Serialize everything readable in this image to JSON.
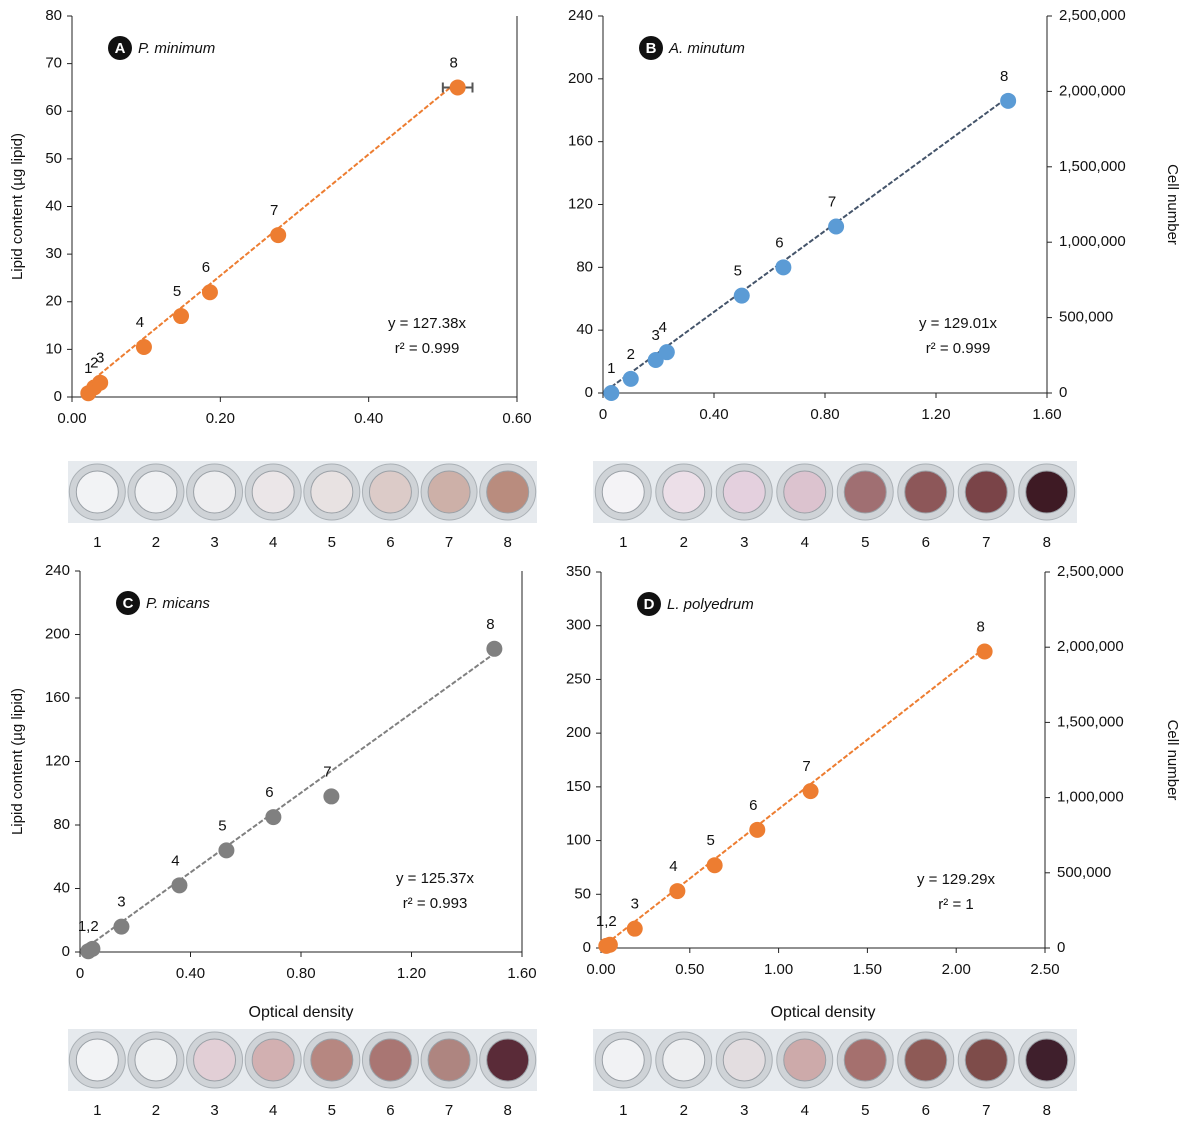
{
  "chart_data": [
    {
      "type": "scatter",
      "panel": "A",
      "species": "P. minimum",
      "equation": "y = 127.38x",
      "r2": "r² = 0.999",
      "slope": 127.38,
      "ylabel": "Lipid content (µg lipid)",
      "color": "#ed7d31",
      "line_color": "#ed7d31",
      "x": [
        0.022,
        0.03,
        0.038,
        0.097,
        0.147,
        0.186,
        0.278,
        0.52
      ],
      "values": [
        0.8,
        2,
        3,
        10.5,
        17,
        22,
        34,
        65
      ],
      "x_errors": [
        null,
        null,
        null,
        null,
        null,
        null,
        null,
        0.02
      ],
      "point_labels": [
        "1",
        "2",
        "3",
        "4",
        "5",
        "6",
        "7",
        "8"
      ],
      "xlim": [
        0,
        0.6
      ],
      "xticks": [
        {
          "value": 0,
          "label": "0.00"
        },
        {
          "value": 0.2,
          "label": "0.20"
        },
        {
          "value": 0.4,
          "label": "0.40"
        },
        {
          "value": 0.6,
          "label": "0.60"
        }
      ],
      "ylim": [
        0,
        80
      ],
      "yticks": [
        0,
        10,
        20,
        30,
        40,
        50,
        60,
        70,
        80
      ],
      "well_labels": [
        "1",
        "2",
        "3",
        "4",
        "5",
        "6",
        "7",
        "8"
      ],
      "well_colors": [
        "#f2f3f5",
        "#f0f1f3",
        "#eeeef0",
        "#ebe6e8",
        "#e8e2e2",
        "#dccbc8",
        "#cdb0a8",
        "#b98c7e"
      ]
    },
    {
      "type": "scatter",
      "panel": "B",
      "species": "A. minutum",
      "equation": "y = 129.01x",
      "r2": "r² = 0.999",
      "slope": 129.01,
      "y2label": "Cell number",
      "color": "#5b9bd5",
      "line_color": "#44546a",
      "x": [
        0.03,
        0.1,
        0.19,
        0.23,
        0.5,
        0.65,
        0.84,
        1.46
      ],
      "values": [
        0,
        9,
        21,
        26,
        62,
        80,
        106,
        186
      ],
      "point_labels": [
        "1",
        "2",
        "3",
        "4",
        "5",
        "6",
        "7",
        "8"
      ],
      "xlim": [
        0,
        1.6
      ],
      "xticks": [
        0,
        {
          "value": 0.4,
          "label": "0.40"
        },
        {
          "value": 0.8,
          "label": "0.80"
        },
        {
          "value": 1.2,
          "label": "1.20"
        },
        {
          "value": 1.6,
          "label": "1.60"
        }
      ],
      "ylim": [
        0,
        240
      ],
      "yticks": [
        0,
        40,
        80,
        120,
        160,
        200,
        240
      ],
      "y2lim": [
        0,
        2500000
      ],
      "y2ticks": [
        0,
        {
          "value": 500000,
          "label": "500,000"
        },
        {
          "value": 1000000,
          "label": "1,000,000"
        },
        {
          "value": 1500000,
          "label": "1,500,000"
        },
        {
          "value": 2000000,
          "label": "2,000,000"
        },
        {
          "value": 2500000,
          "label": "2,500,000"
        }
      ],
      "well_labels": [
        "1",
        "2",
        "3",
        "4",
        "5",
        "6",
        "7",
        "8"
      ],
      "well_colors": [
        "#f4f3f6",
        "#ecdfe8",
        "#e4d0de",
        "#dcc3cf",
        "#a06f72",
        "#8d5759",
        "#7a4448",
        "#3e1a24"
      ]
    },
    {
      "type": "scatter",
      "panel": "C",
      "species": "P. micans",
      "equation": "y = 125.37x",
      "r2": "r² = 0.993",
      "slope": 125.37,
      "ylabel": "Lipid content (µg lipid)",
      "xlabel": "Optical density",
      "color": "#808080",
      "line_color": "#808080",
      "x": [
        0.03,
        0.045,
        0.15,
        0.36,
        0.53,
        0.7,
        0.91,
        1.5
      ],
      "values": [
        0.5,
        2,
        16,
        42,
        64,
        85,
        98,
        191
      ],
      "point_labels": [
        "1,2",
        null,
        "3",
        "4",
        "5",
        "6",
        "7",
        "8"
      ],
      "xlim": [
        0,
        1.6
      ],
      "xticks": [
        0,
        {
          "value": 0.4,
          "label": "0.40"
        },
        {
          "value": 0.8,
          "label": "0.80"
        },
        {
          "value": 1.2,
          "label": "1.20"
        },
        {
          "value": 1.6,
          "label": "1.60"
        }
      ],
      "ylim": [
        0,
        240
      ],
      "yticks": [
        0,
        40,
        80,
        120,
        160,
        200,
        240
      ],
      "well_labels": [
        "1",
        "2",
        "3",
        "4",
        "5",
        "6",
        "7",
        "8"
      ],
      "well_colors": [
        "#f2f3f5",
        "#eef0f2",
        "#e2cfd6",
        "#d2b0b1",
        "#b68781",
        "#a97673",
        "#ae8580",
        "#5a2b38"
      ]
    },
    {
      "type": "scatter",
      "panel": "D",
      "species": "L. polyedrum",
      "equation": "y = 129.29x",
      "r2": "r² = 1",
      "slope": 129.29,
      "y2label": "Cell number",
      "xlabel": "Optical density",
      "color": "#ed7d31",
      "line_color": "#ed7d31",
      "x": [
        0.03,
        0.05,
        0.19,
        0.43,
        0.64,
        0.88,
        1.18,
        2.16
      ],
      "values": [
        2,
        3,
        18,
        53,
        77,
        110,
        146,
        276
      ],
      "point_labels": [
        "1,2",
        null,
        "3",
        "4",
        "5",
        "6",
        "7",
        "8"
      ],
      "xlim": [
        0,
        2.5
      ],
      "xticks": [
        {
          "value": 0,
          "label": "0.00"
        },
        {
          "value": 0.5,
          "label": "0.50"
        },
        {
          "value": 1,
          "label": "1.00"
        },
        {
          "value": 1.5,
          "label": "1.50"
        },
        {
          "value": 2,
          "label": "2.00"
        },
        {
          "value": 2.5,
          "label": "2.50"
        }
      ],
      "ylim": [
        0,
        350
      ],
      "yticks": [
        0,
        50,
        100,
        150,
        200,
        250,
        300,
        350
      ],
      "y2lim": [
        0,
        2500000
      ],
      "y2ticks": [
        0,
        {
          "value": 500000,
          "label": "500,000"
        },
        {
          "value": 1000000,
          "label": "1,000,000"
        },
        {
          "value": 1500000,
          "label": "1,500,000"
        },
        {
          "value": 2000000,
          "label": "2,000,000"
        },
        {
          "value": 2500000,
          "label": "2,500,000"
        }
      ],
      "well_labels": [
        "1",
        "2",
        "3",
        "4",
        "5",
        "6",
        "7",
        "8"
      ],
      "well_colors": [
        "#f1f2f4",
        "#eeeff1",
        "#e3dde0",
        "#cdaaaa",
        "#a5706e",
        "#8e5a56",
        "#7e4c4a",
        "#3f1f2c"
      ]
    }
  ]
}
